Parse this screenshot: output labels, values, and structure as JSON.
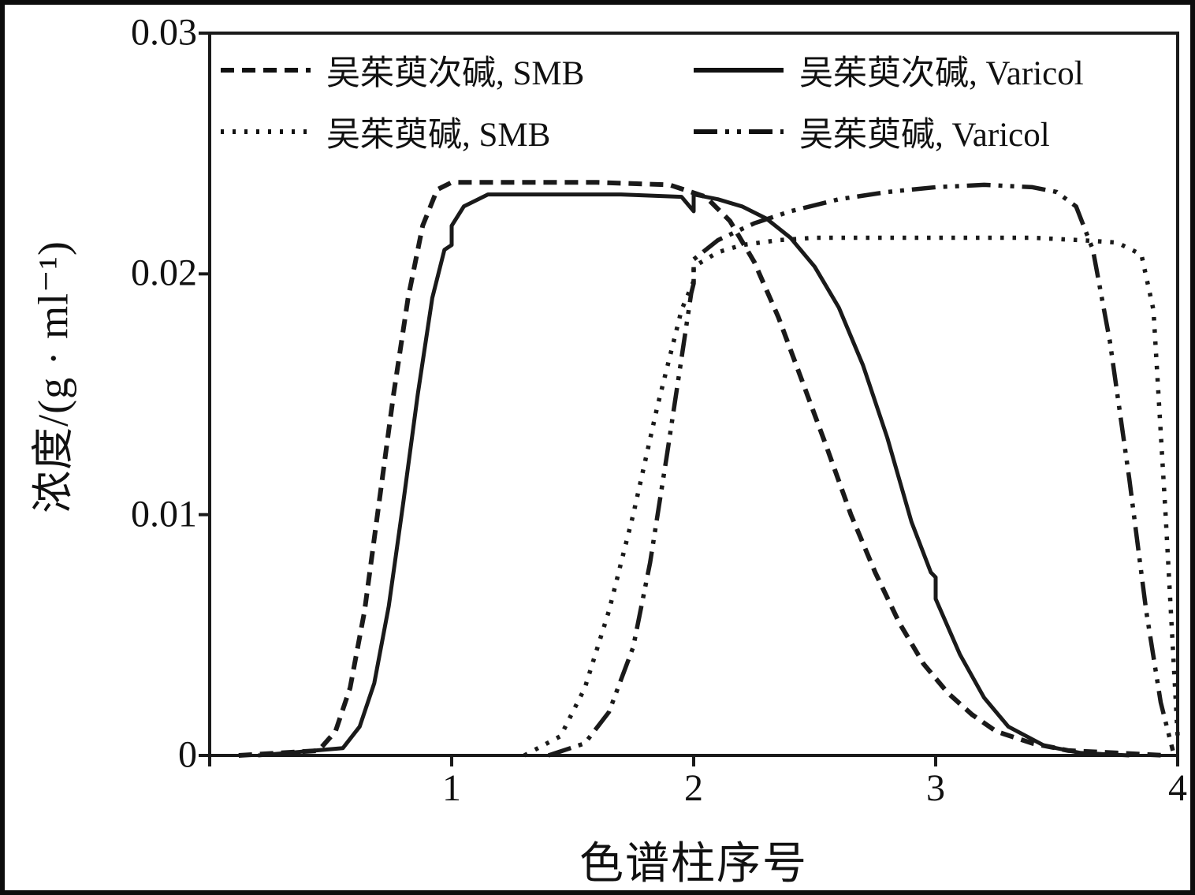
{
  "figure": {
    "background": "#ffffff",
    "frame_color": "#0d0d0d",
    "line_color": "#1a1a1a"
  },
  "chart_data": {
    "type": "line",
    "title": "",
    "xlabel": "色谱柱序号",
    "ylabel": "浓度/(g · ml⁻¹)",
    "xlim": [
      0,
      4
    ],
    "ylim": [
      0,
      0.03
    ],
    "grid": false,
    "legend_position": "top-inside",
    "x_ticks": [
      0,
      1,
      2,
      3,
      4
    ],
    "x_tick_labels": [
      "",
      "1",
      "2",
      "3",
      "4"
    ],
    "y_ticks": [
      0,
      0.01,
      0.02,
      0.03
    ],
    "y_tick_labels": [
      "0",
      "0.01",
      "0.02",
      "0.03"
    ],
    "series": [
      {
        "name": "吴茱萸次碱, SMB",
        "style": "dashed",
        "x": [
          0.12,
          0.45,
          0.52,
          0.58,
          0.64,
          0.7,
          0.76,
          0.82,
          0.88,
          0.94,
          1.0,
          1.3,
          1.6,
          1.9,
          2.05,
          2.15,
          2.25,
          2.35,
          2.45,
          2.55,
          2.65,
          2.75,
          2.85,
          2.95,
          3.05,
          3.15,
          3.25,
          3.4,
          3.55,
          3.75,
          3.95
        ],
        "y": [
          0,
          0.0002,
          0.001,
          0.0028,
          0.006,
          0.0105,
          0.015,
          0.019,
          0.022,
          0.0235,
          0.0238,
          0.0238,
          0.0238,
          0.0237,
          0.0232,
          0.0222,
          0.0205,
          0.0182,
          0.0155,
          0.0128,
          0.01,
          0.0076,
          0.0055,
          0.0038,
          0.0026,
          0.0017,
          0.001,
          0.0005,
          0.0002,
          0.0001,
          0
        ]
      },
      {
        "name": "吴茱萸次碱, Varicol",
        "style": "solid",
        "x": [
          0.2,
          0.55,
          0.62,
          0.68,
          0.74,
          0.8,
          0.86,
          0.92,
          0.97,
          1.0,
          1.0,
          1.05,
          1.15,
          1.4,
          1.7,
          1.95,
          2.0,
          2.0,
          2.1,
          2.2,
          2.3,
          2.4,
          2.5,
          2.6,
          2.7,
          2.8,
          2.9,
          2.98,
          3.0,
          3.0,
          3.1,
          3.2,
          3.3,
          3.45,
          3.6,
          3.8
        ],
        "y": [
          0,
          0.0003,
          0.0012,
          0.003,
          0.0062,
          0.0105,
          0.015,
          0.019,
          0.021,
          0.0212,
          0.022,
          0.0228,
          0.0233,
          0.0233,
          0.0233,
          0.0232,
          0.0226,
          0.0233,
          0.0231,
          0.0228,
          0.0223,
          0.0215,
          0.0203,
          0.0186,
          0.0162,
          0.0132,
          0.0097,
          0.0076,
          0.0074,
          0.0065,
          0.0042,
          0.0024,
          0.0012,
          0.0004,
          0.0001,
          0
        ]
      },
      {
        "name": "吴茱萸碱, SMB",
        "style": "dotted",
        "x": [
          1.3,
          1.45,
          1.55,
          1.65,
          1.75,
          1.85,
          1.95,
          2.0,
          2.0,
          2.1,
          2.2,
          2.35,
          2.5,
          2.8,
          3.1,
          3.4,
          3.6,
          3.75,
          3.85,
          3.9,
          3.95,
          4.0
        ],
        "y": [
          0,
          0.0008,
          0.0028,
          0.006,
          0.01,
          0.0145,
          0.0185,
          0.0197,
          0.0203,
          0.0209,
          0.0212,
          0.0214,
          0.0215,
          0.0215,
          0.0215,
          0.0215,
          0.0214,
          0.0213,
          0.0208,
          0.0185,
          0.01,
          0.0008
        ]
      },
      {
        "name": "吴茱萸碱, Varicol",
        "style": "dashdot",
        "x": [
          1.4,
          1.55,
          1.65,
          1.75,
          1.82,
          1.89,
          1.95,
          1.99,
          2.0,
          2.0,
          2.1,
          2.25,
          2.4,
          2.6,
          2.8,
          3.0,
          3.2,
          3.4,
          3.5,
          3.58,
          3.65,
          3.72,
          3.8,
          3.87,
          3.93,
          3.98
        ],
        "y": [
          0,
          0.0005,
          0.0018,
          0.0045,
          0.008,
          0.0125,
          0.0165,
          0.0192,
          0.0196,
          0.0206,
          0.0214,
          0.0221,
          0.0226,
          0.0231,
          0.0234,
          0.0236,
          0.0237,
          0.0236,
          0.0234,
          0.0228,
          0.021,
          0.0172,
          0.0115,
          0.006,
          0.0022,
          0.0002
        ]
      }
    ]
  }
}
